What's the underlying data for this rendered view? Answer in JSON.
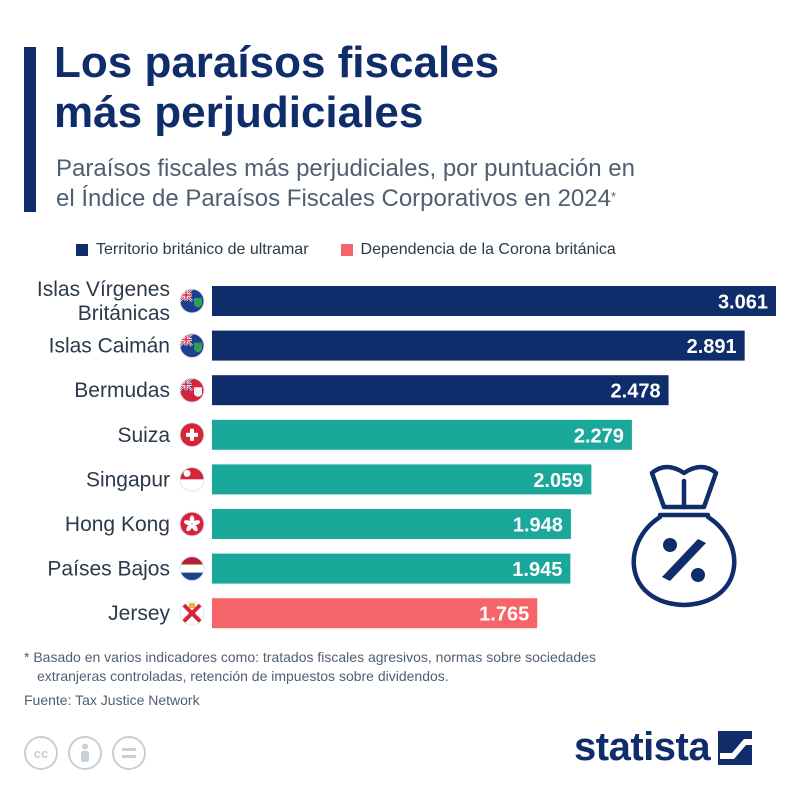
{
  "title_line1": "Los paraísos fiscales",
  "title_line2": "más perjudiciales",
  "subtitle_line1": "Paraísos fiscales más perjudiciales, por puntuación en",
  "subtitle_line2": "el Índice de Paraísos Fiscales Corporativos en 2024",
  "subtitle_mark": "*",
  "legend": [
    {
      "label": "Territorio británico de ultramar",
      "color": "#0f2d6b"
    },
    {
      "label": "Dependencia de la Corona británica",
      "color": "#f56468"
    }
  ],
  "colors": {
    "overseas": "#0f2d6b",
    "swiss_like": "#1aa89a",
    "crown": "#f56468"
  },
  "chart_data": {
    "type": "bar",
    "orientation": "horizontal",
    "categories": [
      "Islas Vírgenes Británicas",
      "Islas Caimán",
      "Bermudas",
      "Suiza",
      "Singapur",
      "Hong Kong",
      "Países Bajos",
      "Jersey"
    ],
    "values": [
      3.061,
      2.891,
      2.478,
      2.279,
      2.059,
      1.948,
      1.945,
      1.765
    ],
    "value_labels": [
      "3.061",
      "2.891",
      "2.478",
      "2.279",
      "2.059",
      "1.948",
      "1.945",
      "1.765"
    ],
    "bar_colors": [
      "#0f2d6b",
      "#0f2d6b",
      "#0f2d6b",
      "#1aa89a",
      "#1aa89a",
      "#1aa89a",
      "#1aa89a",
      "#f56468"
    ],
    "flags": [
      "bvi-flag-icon",
      "cayman-flag-icon",
      "bermuda-flag-icon",
      "switzerland-flag-icon",
      "singapore-flag-icon",
      "hong-kong-flag-icon",
      "netherlands-flag-icon",
      "jersey-flag-icon"
    ],
    "xlim": [
      0,
      3.061
    ],
    "grid": false,
    "legend_position": "top"
  },
  "footnote_line1": "* Basado en varios indicadores como: tratados fiscales agresivos, normas sobre sociedades",
  "footnote_line2": "extranjeras controladas, retención de impuestos sobre dividendos.",
  "source": "Fuente: Tax Justice Network",
  "brand": "statista"
}
